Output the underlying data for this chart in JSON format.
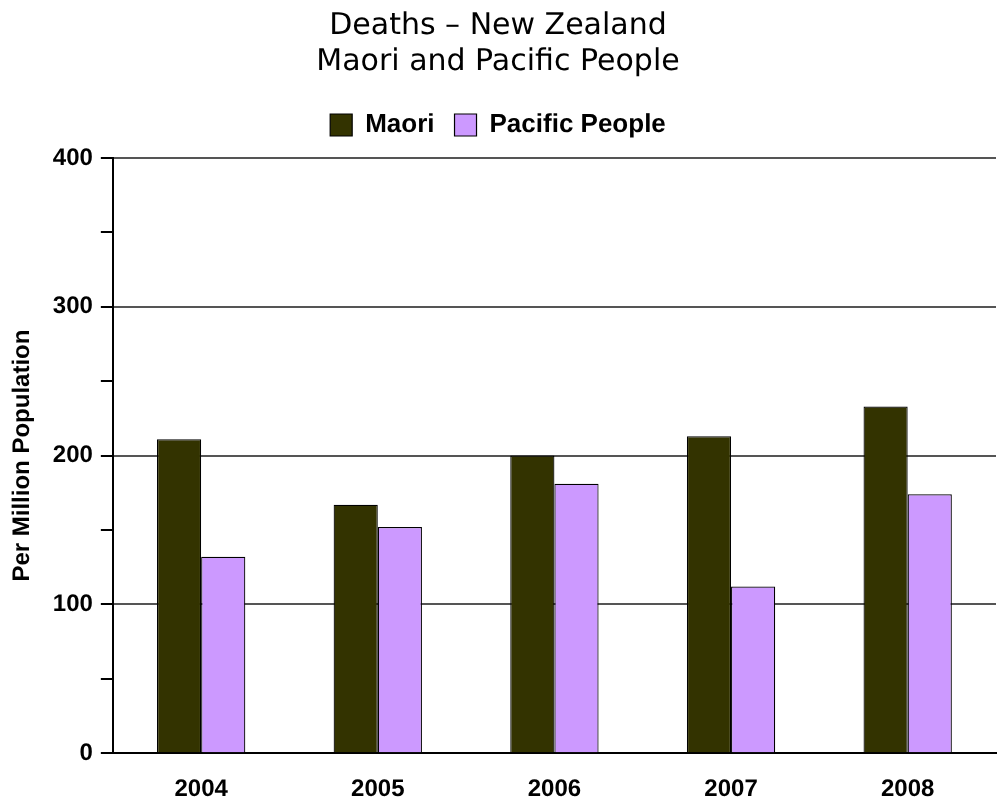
{
  "chart_data": {
    "type": "bar",
    "title": [
      "Deaths – New Zealand",
      "Maori and Pacific People"
    ],
    "ylabel": "Per Million Population",
    "categories": [
      "2004",
      "2005",
      "2006",
      "2007",
      "2008"
    ],
    "series": [
      {
        "name": "Maori",
        "color": "#333300",
        "values": [
          211,
          167,
          200,
          213,
          233
        ]
      },
      {
        "name": "Pacific People",
        "color": "#cc99ff",
        "values": [
          132,
          152,
          181,
          112,
          174
        ]
      }
    ],
    "ylim": [
      0,
      400
    ],
    "yticks": [
      0,
      {
        "value": 50,
        "label": null
      },
      100,
      {
        "value": 150,
        "label": null
      },
      200,
      {
        "value": 250,
        "label": null
      },
      300,
      {
        "value": 350,
        "label": null
      },
      400
    ],
    "grid": "y",
    "legend": "top"
  }
}
